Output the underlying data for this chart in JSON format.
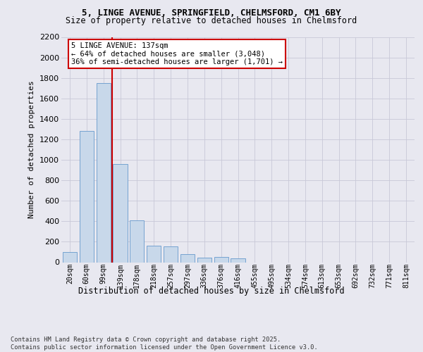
{
  "title1": "5, LINGE AVENUE, SPRINGFIELD, CHELMSFORD, CM1 6BY",
  "title2": "Size of property relative to detached houses in Chelmsford",
  "xlabel": "Distribution of detached houses by size in Chelmsford",
  "ylabel": "Number of detached properties",
  "footer1": "Contains HM Land Registry data © Crown copyright and database right 2025.",
  "footer2": "Contains public sector information licensed under the Open Government Licence v3.0.",
  "annotation_line1": "5 LINGE AVENUE: 137sqm",
  "annotation_line2": "← 64% of detached houses are smaller (3,048)",
  "annotation_line3": "36% of semi-detached houses are larger (1,701) →",
  "bar_color": "#c8d8ea",
  "bar_edge_color": "#6699cc",
  "grid_color": "#c8c8d8",
  "vline_color": "#cc0000",
  "annotation_edge_color": "#cc0000",
  "categories": [
    "20sqm",
    "60sqm",
    "99sqm",
    "139sqm",
    "178sqm",
    "218sqm",
    "257sqm",
    "297sqm",
    "336sqm",
    "376sqm",
    "416sqm",
    "455sqm",
    "495sqm",
    "534sqm",
    "574sqm",
    "613sqm",
    "653sqm",
    "692sqm",
    "732sqm",
    "771sqm",
    "811sqm"
  ],
  "values": [
    100,
    1280,
    1750,
    960,
    410,
    165,
    155,
    80,
    45,
    55,
    40,
    0,
    0,
    0,
    0,
    0,
    0,
    0,
    0,
    0,
    0
  ],
  "ylim_max": 2200,
  "ytick_interval": 200,
  "vline_pos": 2.5,
  "background_color": "#e8e8f0"
}
